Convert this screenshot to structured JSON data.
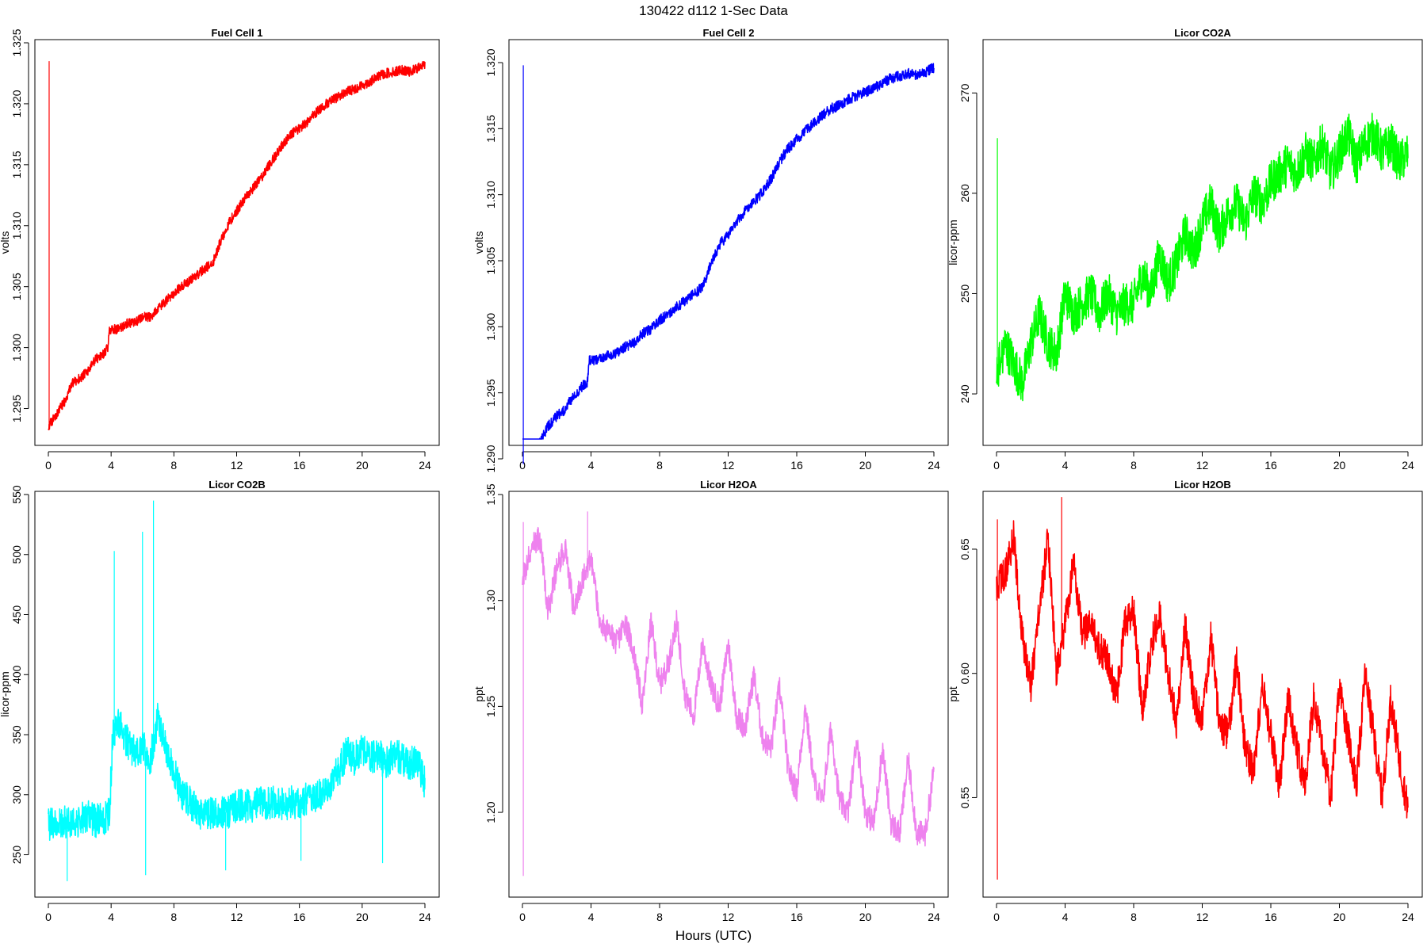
{
  "figure": {
    "title": "130422   d112   1-Sec Data",
    "xlabel": "Hours (UTC)"
  },
  "chart_data": [
    {
      "type": "line",
      "title": "Fuel Cell 1",
      "ylabel": "volts",
      "color": "#ff0000",
      "xlim": [
        0,
        24
      ],
      "ylim": [
        1.2925,
        1.325
      ],
      "xticks": [
        "0",
        "4",
        "8",
        "12",
        "16",
        "20",
        "24"
      ],
      "yticks": [
        "1.295",
        "1.300",
        "1.305",
        "1.310",
        "1.315",
        "1.320",
        "1.325"
      ],
      "x": [
        0,
        0.5,
        1,
        1.5,
        2,
        2.5,
        3,
        3.5,
        3.8,
        3.9,
        4.5,
        5,
        5.5,
        6,
        6.5,
        7,
        7.5,
        8,
        8.5,
        9,
        9.5,
        10,
        10.5,
        11,
        11.5,
        12,
        12.5,
        13,
        13.5,
        14,
        14.5,
        15,
        15.5,
        16,
        16.5,
        17,
        17.5,
        18,
        18.5,
        19,
        19.5,
        20,
        20.5,
        21,
        21.5,
        22,
        22.5,
        23,
        23.5,
        24
      ],
      "values": [
        1.2935,
        1.2945,
        1.2955,
        1.297,
        1.2975,
        1.298,
        1.299,
        1.2995,
        1.3,
        1.3015,
        1.3015,
        1.302,
        1.302,
        1.3025,
        1.3025,
        1.3032,
        1.3038,
        1.3045,
        1.305,
        1.3055,
        1.306,
        1.3065,
        1.307,
        1.3088,
        1.3102,
        1.3112,
        1.3122,
        1.313,
        1.3138,
        1.3148,
        1.3158,
        1.3168,
        1.3175,
        1.318,
        1.3185,
        1.3192,
        1.3198,
        1.3202,
        1.3206,
        1.321,
        1.3212,
        1.3215,
        1.3218,
        1.3222,
        1.3225,
        1.3226,
        1.3228,
        1.3226,
        1.3229,
        1.3232
      ],
      "noise": 0.0004,
      "spikes": [
        {
          "x": 0.05,
          "y": 1.3235
        }
      ]
    },
    {
      "type": "line",
      "title": "Fuel Cell 2",
      "ylabel": "volts",
      "color": "#0000ff",
      "xlim": [
        0,
        24
      ],
      "ylim": [
        1.2915,
        1.3215
      ],
      "xticks": [
        "0",
        "4",
        "8",
        "12",
        "16",
        "20",
        "24"
      ],
      "yticks": [
        "1.290",
        "1.295",
        "1.300",
        "1.305",
        "1.310",
        "1.315",
        "1.320"
      ],
      "x": [
        0,
        0.5,
        1,
        1.5,
        2,
        2.5,
        3,
        3.5,
        3.8,
        3.9,
        4.5,
        5,
        5.5,
        6,
        6.5,
        7,
        7.5,
        8,
        8.5,
        9,
        9.5,
        10,
        10.5,
        11,
        11.5,
        12,
        12.5,
        13,
        13.5,
        14,
        14.5,
        15,
        15.5,
        16,
        16.5,
        17,
        17.5,
        18,
        18.5,
        19,
        19.5,
        20,
        20.5,
        21,
        21.5,
        22,
        22.5,
        23,
        23.5,
        24
      ],
      "values": [
        1.2895,
        1.2905,
        1.2912,
        1.2925,
        1.2932,
        1.2938,
        1.2948,
        1.2955,
        1.2958,
        1.2975,
        1.2975,
        1.2978,
        1.298,
        1.2985,
        1.2988,
        1.2995,
        1.2998,
        1.3005,
        1.301,
        1.3015,
        1.302,
        1.3025,
        1.303,
        1.3048,
        1.3062,
        1.307,
        1.308,
        1.3088,
        1.3095,
        1.3102,
        1.3112,
        1.3125,
        1.3135,
        1.3142,
        1.3148,
        1.3155,
        1.316,
        1.3165,
        1.3168,
        1.3172,
        1.3175,
        1.3178,
        1.318,
        1.3185,
        1.3188,
        1.319,
        1.3192,
        1.319,
        1.3193,
        1.3196
      ],
      "noise": 0.0004,
      "spikes": [
        {
          "x": 0.05,
          "y": 1.3198
        }
      ]
    },
    {
      "type": "line",
      "title": "Licor CO2A",
      "ylabel": "licor-ppm",
      "color": "#00ff00",
      "xlim": [
        0,
        24
      ],
      "ylim": [
        235.5,
        275
      ],
      "xticks": [
        "0",
        "4",
        "8",
        "12",
        "16",
        "20",
        "24"
      ],
      "yticks": [
        "240",
        "250",
        "260",
        "270"
      ],
      "x": [
        0,
        0.5,
        1,
        1.5,
        2,
        2.5,
        3,
        3.5,
        4,
        4.5,
        5,
        5.5,
        6,
        6.5,
        7,
        7.5,
        8,
        8.5,
        9,
        9.5,
        10,
        10.5,
        11,
        11.5,
        12,
        12.5,
        13,
        13.5,
        14,
        14.5,
        15,
        15.5,
        16,
        16.5,
        17,
        17.5,
        18,
        18.5,
        19,
        19.5,
        20,
        20.5,
        21,
        21.5,
        22,
        22.5,
        23,
        23.5,
        24
      ],
      "values": [
        242,
        245,
        243,
        241,
        245,
        248,
        245,
        244,
        250,
        248,
        249,
        250,
        248,
        250,
        248,
        249,
        249,
        252,
        250,
        254,
        251,
        253,
        256,
        254,
        257,
        259,
        256,
        258,
        259,
        257,
        260,
        259,
        261,
        262,
        263,
        262,
        264,
        263,
        265,
        262,
        264,
        266,
        263,
        265,
        266,
        264,
        265,
        263,
        264
      ],
      "noise": 2.2,
      "spikes": [
        {
          "x": 0.05,
          "y": 265.5
        }
      ]
    },
    {
      "type": "line",
      "title": "Licor CO2B",
      "ylabel": "licor-ppm",
      "color": "#00ffff",
      "xlim": [
        0,
        24
      ],
      "ylim": [
        220,
        550
      ],
      "xticks": [
        "0",
        "4",
        "8",
        "12",
        "16",
        "20",
        "24"
      ],
      "yticks": [
        "250",
        "300",
        "350",
        "400",
        "450",
        "500",
        "550"
      ],
      "x": [
        0,
        0.5,
        1,
        1.5,
        2,
        2.5,
        3,
        3.5,
        3.9,
        4.1,
        4.5,
        5,
        5.5,
        6,
        6.5,
        7,
        7.5,
        8,
        8.5,
        9,
        9.5,
        10,
        10.5,
        11,
        11.5,
        12,
        12.5,
        13,
        13.5,
        14,
        14.5,
        15,
        15.5,
        16,
        16.5,
        17,
        17.5,
        18,
        18.5,
        19,
        19.5,
        20,
        20.5,
        21,
        21.5,
        22,
        22.5,
        23,
        23.5,
        24
      ],
      "values": [
        276,
        275,
        278,
        274,
        279,
        282,
        278,
        280,
        284,
        350,
        360,
        345,
        335,
        340,
        330,
        365,
        340,
        320,
        300,
        295,
        285,
        282,
        285,
        286,
        285,
        290,
        291,
        290,
        293,
        292,
        294,
        292,
        294,
        294,
        296,
        298,
        300,
        310,
        320,
        335,
        330,
        340,
        330,
        335,
        325,
        335,
        330,
        325,
        330,
        310
      ],
      "noise": 14,
      "spikes": [
        {
          "x": 1.2,
          "y": 228
        },
        {
          "x": 4.2,
          "y": 503
        },
        {
          "x": 6.0,
          "y": 519
        },
        {
          "x": 6.2,
          "y": 233
        },
        {
          "x": 6.7,
          "y": 545
        },
        {
          "x": 11.3,
          "y": 237
        },
        {
          "x": 16.1,
          "y": 245
        },
        {
          "x": 21.3,
          "y": 243
        }
      ]
    },
    {
      "type": "line",
      "title": "Licor H2OA",
      "ylabel": "ppt",
      "color": "#ee82ee",
      "xlim": [
        0,
        24
      ],
      "ylim": [
        1.163,
        1.35
      ],
      "xticks": [
        "0",
        "4",
        "8",
        "12",
        "16",
        "20",
        "24"
      ],
      "yticks": [
        "1.20",
        "1.25",
        "1.30",
        "1.35"
      ],
      "x": [
        0,
        0.5,
        1,
        1.5,
        2,
        2.5,
        3,
        3.5,
        4,
        4.5,
        5,
        5.5,
        6,
        6.5,
        7,
        7.5,
        8,
        8.5,
        9,
        9.5,
        10,
        10.5,
        11,
        11.5,
        12,
        12.5,
        13,
        13.5,
        14,
        14.5,
        15,
        15.5,
        16,
        16.5,
        17,
        17.5,
        18,
        18.5,
        19,
        19.5,
        20,
        20.5,
        21,
        21.5,
        22,
        22.5,
        23,
        23.5,
        24
      ],
      "values": [
        1.31,
        1.325,
        1.33,
        1.295,
        1.315,
        1.325,
        1.295,
        1.31,
        1.32,
        1.29,
        1.285,
        1.28,
        1.29,
        1.275,
        1.25,
        1.29,
        1.26,
        1.27,
        1.29,
        1.255,
        1.245,
        1.28,
        1.26,
        1.25,
        1.28,
        1.245,
        1.24,
        1.265,
        1.235,
        1.23,
        1.26,
        1.22,
        1.21,
        1.25,
        1.215,
        1.205,
        1.24,
        1.205,
        1.2,
        1.235,
        1.2,
        1.195,
        1.23,
        1.195,
        1.19,
        1.225,
        1.19,
        1.19,
        1.22
      ],
      "noise": 0.006,
      "spikes": [
        {
          "x": 0.05,
          "y": 1.337
        },
        {
          "x": 0.05,
          "y": 1.17
        },
        {
          "x": 3.8,
          "y": 1.342
        }
      ]
    },
    {
      "type": "line",
      "title": "Licor H2OB",
      "ylabel": "ppt",
      "color": "#ff0000",
      "xlim": [
        0,
        24
      ],
      "ylim": [
        0.5125,
        0.672
      ],
      "xticks": [
        "0",
        "4",
        "8",
        "12",
        "16",
        "20",
        "24"
      ],
      "yticks": [
        "0.55",
        "0.60",
        "0.65"
      ],
      "x": [
        0,
        0.5,
        1,
        1.5,
        2,
        2.5,
        3,
        3.5,
        4,
        4.5,
        5,
        5.5,
        6,
        6.5,
        7,
        7.5,
        8,
        8.5,
        9,
        9.5,
        10,
        10.5,
        11,
        11.5,
        12,
        12.5,
        13,
        13.5,
        14,
        14.5,
        15,
        15.5,
        16,
        16.5,
        17,
        17.5,
        18,
        18.5,
        19,
        19.5,
        20,
        20.5,
        21,
        21.5,
        22,
        22.5,
        23,
        23.5,
        24
      ],
      "values": [
        0.635,
        0.64,
        0.655,
        0.615,
        0.595,
        0.625,
        0.655,
        0.6,
        0.62,
        0.645,
        0.615,
        0.62,
        0.61,
        0.605,
        0.59,
        0.62,
        0.625,
        0.585,
        0.61,
        0.625,
        0.6,
        0.58,
        0.62,
        0.59,
        0.58,
        0.615,
        0.58,
        0.575,
        0.605,
        0.57,
        0.56,
        0.595,
        0.575,
        0.555,
        0.59,
        0.57,
        0.555,
        0.59,
        0.57,
        0.55,
        0.595,
        0.575,
        0.555,
        0.6,
        0.575,
        0.55,
        0.59,
        0.565,
        0.545
      ],
      "noise": 0.007,
      "spikes": [
        {
          "x": 0.05,
          "y": 0.662
        },
        {
          "x": 0.05,
          "y": 0.517
        },
        {
          "x": 3.8,
          "y": 0.671
        }
      ]
    }
  ]
}
